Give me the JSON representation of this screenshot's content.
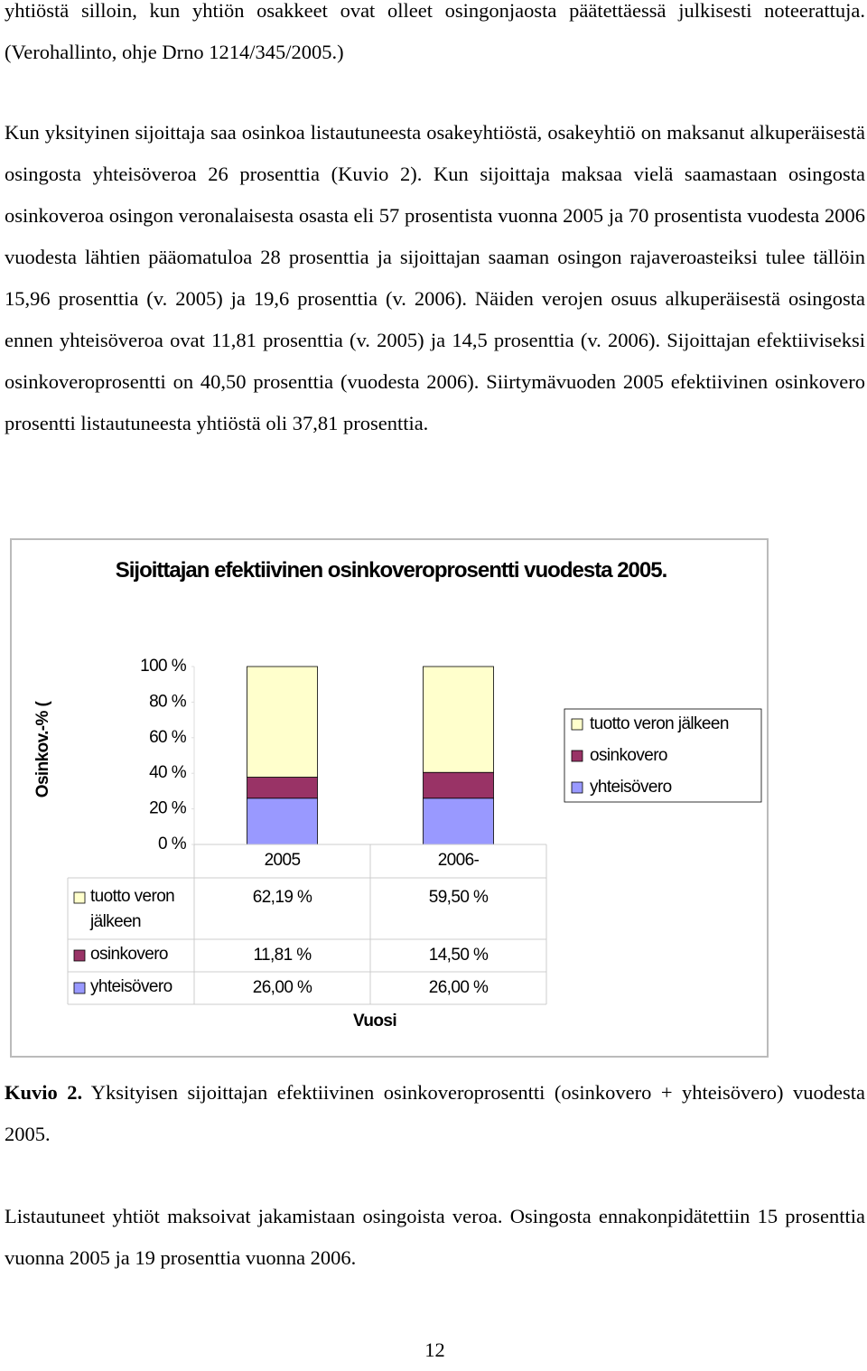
{
  "paragraphs": [
    "yhtiöstä silloin, kun yhtiön osakkeet ovat olleet osingonjaosta päätettäessä julkisesti noteerattuja. (Verohallinto, ohje Drno 1214/345/2005.)",
    "Kun yksityinen sijoittaja saa osinkoa listautuneesta osakeyhtiöstä, osakeyhtiö on maksanut alkuperäisestä osingosta yhteisöveroa 26 prosenttia (Kuvio 2). Kun sijoittaja maksaa vielä saamastaan osingosta osinkoveroa osingon veronalaisesta osasta eli 57 prosentista vuonna 2005 ja 70 prosentista vuodesta 2006 vuodesta lähtien pääomatuloa 28 prosenttia ja sijoittajan saaman osingon rajaveroasteiksi tulee tällöin 15,96 prosenttia (v. 2005) ja 19,6 prosenttia (v. 2006). Näiden verojen osuus alkuperäisestä osingosta ennen yhteisöveroa ovat 11,81 prosenttia (v. 2005) ja 14,5 prosenttia (v. 2006). Sijoittajan efektiiviseksi osinkoveroprosentti on 40,50 prosenttia (vuodesta 2006). Siirtymävuoden 2005 efektiivinen osinkovero prosentti listautuneesta yhtiöstä oli 37,81 prosenttia.",
    "Listautuneet yhtiöt maksoivat jakamistaan osingoista veroa. Osingosta ennakonpidätettiin 15 prosenttia vuonna 2005 ja 19 prosenttia vuonna 2006."
  ],
  "chart_data": {
    "type": "bar",
    "stacked": true,
    "title": "Sijoittajan efektiivinen osinkoveroprosentti vuodesta 2005.",
    "y_label": "Osinkov.-% (",
    "x_label": "Vuosi",
    "categories": [
      "2005",
      "2006-"
    ],
    "series": [
      {
        "name": "tuotto veron jälkeen",
        "color": "#ffffcc",
        "values": [
          62.19,
          59.5
        ],
        "value_labels": [
          "62,19 %",
          "59,50 %"
        ]
      },
      {
        "name": "osinkovero",
        "color": "#993366",
        "values": [
          11.81,
          14.5
        ],
        "value_labels": [
          "11,81 %",
          "14,50 %"
        ]
      },
      {
        "name": "yhteisövero",
        "color": "#9999ff",
        "values": [
          26,
          26
        ],
        "value_labels": [
          "26,00 %",
          "26,00 %"
        ]
      }
    ],
    "ylim": [
      0,
      100
    ],
    "yticks": [
      {
        "value": 0,
        "label": "0 %"
      },
      {
        "value": 20,
        "label": "20 %"
      },
      {
        "value": 40,
        "label": "40 %"
      },
      {
        "value": 60,
        "label": "60 %"
      },
      {
        "value": 80,
        "label": "80 %"
      },
      {
        "value": 100,
        "label": "100 %"
      }
    ],
    "grid": false,
    "legend": "right"
  },
  "caption": {
    "label": "Kuvio 2.",
    "text": "Yksityisen sijoittajan efektiivinen osinkoveroprosentti (osinkovero + yhteisövero) vuodesta 2005."
  },
  "page_number": "12"
}
